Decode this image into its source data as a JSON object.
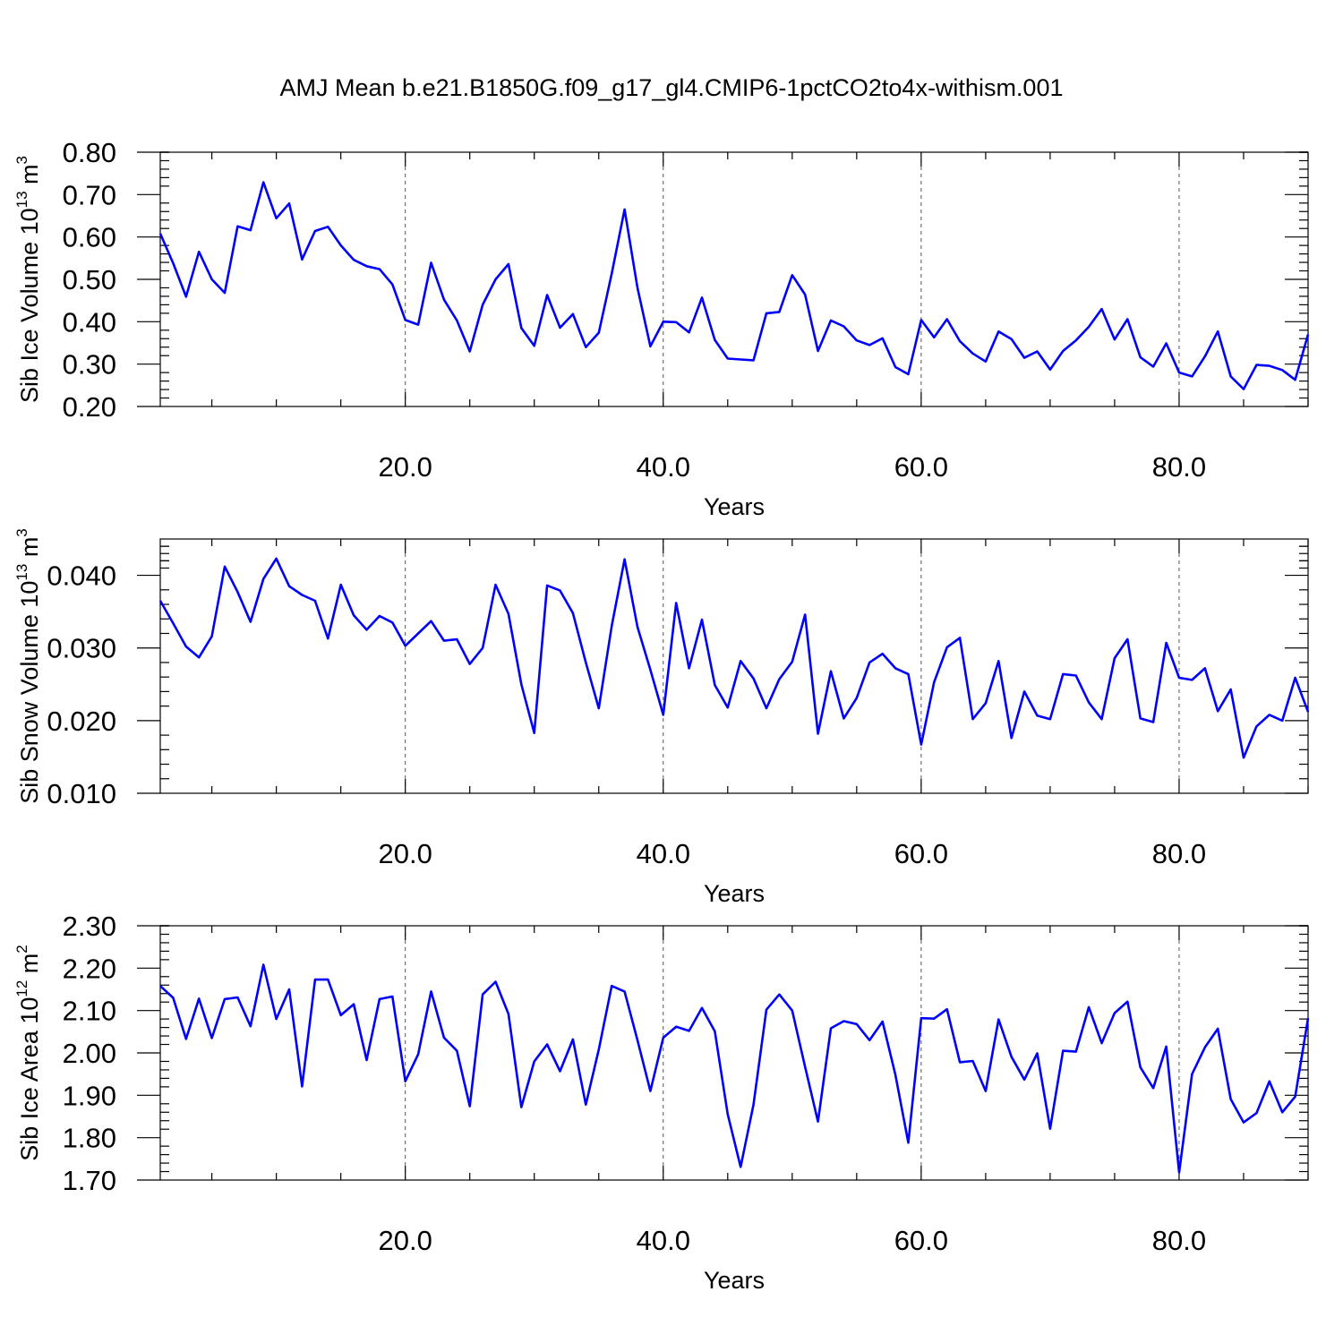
{
  "chart_data": [
    {
      "type": "line",
      "title": "AMJ Mean b.e21.B1850G.f09_g17_gl4.CMIP6-1pctCO2to4x-withism.001",
      "xlabel": "Years",
      "ylabel_text": "Sib Ice Volume 10",
      "ylabel_sup1": "13",
      "ylabel_unit": " m",
      "ylabel_sup2": "3",
      "xlim": [
        1,
        90
      ],
      "ylim": [
        0.2,
        0.8
      ],
      "xticks": [
        20,
        40,
        60,
        80
      ],
      "xtick_labels": [
        "20.0",
        "40.0",
        "60.0",
        "80.0"
      ],
      "yticks": [
        0.2,
        0.3,
        0.4,
        0.5,
        0.6,
        0.7,
        0.8
      ],
      "ytick_labels": [
        "0.20",
        "0.30",
        "0.40",
        "0.50",
        "0.60",
        "0.70",
        "0.80"
      ],
      "grid": "vertical dashed at major x ticks",
      "line_color": "#0000ff",
      "x": [
        1,
        2,
        3,
        4,
        5,
        6,
        7,
        8,
        9,
        10,
        11,
        12,
        13,
        14,
        15,
        16,
        17,
        18,
        19,
        20,
        21,
        22,
        23,
        24,
        25,
        26,
        27,
        28,
        29,
        30,
        31,
        32,
        33,
        34,
        35,
        36,
        37,
        38,
        39,
        40,
        41,
        42,
        43,
        44,
        45,
        46,
        47,
        48,
        49,
        50,
        51,
        52,
        53,
        54,
        55,
        56,
        57,
        58,
        59,
        60,
        61,
        62,
        63,
        64,
        65,
        66,
        67,
        68,
        69,
        70,
        71,
        72,
        73,
        74,
        75,
        76,
        77,
        78,
        79,
        80,
        81,
        82,
        83,
        84,
        85,
        86,
        87,
        88,
        89,
        90
      ],
      "y": [
        0.608,
        0.538,
        0.459,
        0.565,
        0.5,
        0.468,
        0.625,
        0.616,
        0.729,
        0.644,
        0.679,
        0.547,
        0.614,
        0.624,
        0.58,
        0.546,
        0.531,
        0.524,
        0.488,
        0.404,
        0.393,
        0.539,
        0.452,
        0.403,
        0.33,
        0.44,
        0.5,
        0.536,
        0.385,
        0.343,
        0.463,
        0.386,
        0.418,
        0.34,
        0.374,
        0.513,
        0.665,
        0.48,
        0.342,
        0.4,
        0.399,
        0.375,
        0.457,
        0.357,
        0.313,
        0.311,
        0.309,
        0.42,
        0.423,
        0.51,
        0.464,
        0.331,
        0.403,
        0.389,
        0.356,
        0.345,
        0.361,
        0.293,
        0.276,
        0.404,
        0.363,
        0.406,
        0.354,
        0.325,
        0.306,
        0.377,
        0.359,
        0.315,
        0.33,
        0.287,
        0.331,
        0.356,
        0.388,
        0.43,
        0.358,
        0.406,
        0.316,
        0.294,
        0.349,
        0.28,
        0.271,
        0.318,
        0.377,
        0.271,
        0.241,
        0.298,
        0.296,
        0.286,
        0.263,
        0.37
      ]
    },
    {
      "type": "line",
      "xlabel": "Years",
      "ylabel_text": "Sib Snow Volume 10",
      "ylabel_sup1": "13",
      "ylabel_unit": " m",
      "ylabel_sup2": "3",
      "xlim": [
        1,
        90
      ],
      "ylim": [
        0.01,
        0.045
      ],
      "xticks": [
        20,
        40,
        60,
        80
      ],
      "xtick_labels": [
        "20.0",
        "40.0",
        "60.0",
        "80.0"
      ],
      "yticks": [
        0.01,
        0.02,
        0.03,
        0.04
      ],
      "ytick_labels": [
        "0.010",
        "0.020",
        "0.030",
        "0.040"
      ],
      "grid": "vertical dashed at major x ticks",
      "line_color": "#0000ff",
      "x": [
        1,
        2,
        3,
        4,
        5,
        6,
        7,
        8,
        9,
        10,
        11,
        12,
        13,
        14,
        15,
        16,
        17,
        18,
        19,
        20,
        21,
        22,
        23,
        24,
        25,
        26,
        27,
        28,
        29,
        30,
        31,
        32,
        33,
        34,
        35,
        36,
        37,
        38,
        39,
        40,
        41,
        42,
        43,
        44,
        45,
        46,
        47,
        48,
        49,
        50,
        51,
        52,
        53,
        54,
        55,
        56,
        57,
        58,
        59,
        60,
        61,
        62,
        63,
        64,
        65,
        66,
        67,
        68,
        69,
        70,
        71,
        72,
        73,
        74,
        75,
        76,
        77,
        78,
        79,
        80,
        81,
        82,
        83,
        84,
        85,
        86,
        87,
        88,
        89,
        90
      ],
      "y": [
        0.0365,
        0.0334,
        0.0302,
        0.0287,
        0.0316,
        0.0412,
        0.0377,
        0.0336,
        0.0395,
        0.0423,
        0.0385,
        0.0373,
        0.0365,
        0.0313,
        0.0387,
        0.0345,
        0.0325,
        0.0344,
        0.0335,
        0.0303,
        0.032,
        0.0337,
        0.031,
        0.0312,
        0.0278,
        0.03,
        0.0387,
        0.0347,
        0.025,
        0.0183,
        0.0386,
        0.0379,
        0.0348,
        0.028,
        0.0217,
        0.033,
        0.0422,
        0.0329,
        0.027,
        0.0208,
        0.0362,
        0.0272,
        0.0339,
        0.0249,
        0.0218,
        0.0282,
        0.0258,
        0.0217,
        0.0257,
        0.0281,
        0.0346,
        0.0182,
        0.0268,
        0.0203,
        0.0231,
        0.028,
        0.0292,
        0.0272,
        0.0264,
        0.0167,
        0.0253,
        0.0301,
        0.0314,
        0.0202,
        0.0224,
        0.0282,
        0.0176,
        0.024,
        0.0207,
        0.0202,
        0.0264,
        0.0262,
        0.0225,
        0.0202,
        0.0286,
        0.0312,
        0.0203,
        0.0198,
        0.0307,
        0.0259,
        0.0256,
        0.0272,
        0.0213,
        0.0243,
        0.0149,
        0.0192,
        0.0208,
        0.02,
        0.0259,
        0.0212
      ]
    },
    {
      "type": "line",
      "xlabel": "Years",
      "ylabel_text": "Sib Ice Area 10",
      "ylabel_sup1": "12",
      "ylabel_unit": " m",
      "ylabel_sup2": "2",
      "xlim": [
        1,
        90
      ],
      "ylim": [
        1.7,
        2.3
      ],
      "xticks": [
        20,
        40,
        60,
        80
      ],
      "xtick_labels": [
        "20.0",
        "40.0",
        "60.0",
        "80.0"
      ],
      "yticks": [
        1.7,
        1.8,
        1.9,
        2.0,
        2.1,
        2.2,
        2.3
      ],
      "ytick_labels": [
        "1.70",
        "1.80",
        "1.90",
        "2.00",
        "2.10",
        "2.20",
        "2.30"
      ],
      "grid": "vertical dashed at major x ticks",
      "line_color": "#0000ff",
      "x": [
        1,
        2,
        3,
        4,
        5,
        6,
        7,
        8,
        9,
        10,
        11,
        12,
        13,
        14,
        15,
        16,
        17,
        18,
        19,
        20,
        21,
        22,
        23,
        24,
        25,
        26,
        27,
        28,
        29,
        30,
        31,
        32,
        33,
        34,
        35,
        36,
        37,
        38,
        39,
        40,
        41,
        42,
        43,
        44,
        45,
        46,
        47,
        48,
        49,
        50,
        51,
        52,
        53,
        54,
        55,
        56,
        57,
        58,
        59,
        60,
        61,
        62,
        63,
        64,
        65,
        66,
        67,
        68,
        69,
        70,
        71,
        72,
        73,
        74,
        75,
        76,
        77,
        78,
        79,
        80,
        81,
        82,
        83,
        84,
        85,
        86,
        87,
        88,
        89,
        90
      ],
      "y": [
        2.158,
        2.13,
        2.033,
        2.128,
        2.035,
        2.127,
        2.131,
        2.063,
        2.208,
        2.08,
        2.15,
        1.921,
        2.173,
        2.173,
        2.089,
        2.115,
        1.983,
        2.127,
        2.133,
        1.933,
        1.997,
        2.145,
        2.036,
        2.005,
        1.874,
        2.138,
        2.168,
        2.092,
        1.872,
        1.98,
        2.02,
        1.957,
        2.032,
        1.878,
        2.008,
        2.158,
        2.145,
        2.03,
        1.91,
        2.036,
        2.062,
        2.052,
        2.106,
        2.051,
        1.855,
        1.731,
        1.878,
        2.102,
        2.138,
        2.1,
        1.967,
        1.838,
        2.058,
        2.075,
        2.068,
        2.03,
        2.074,
        1.948,
        1.788,
        2.082,
        2.081,
        2.103,
        1.978,
        1.981,
        1.91,
        2.079,
        1.991,
        1.937,
        1.999,
        1.821,
        2.005,
        2.003,
        2.108,
        2.023,
        2.094,
        2.121,
        1.966,
        1.917,
        2.015,
        1.718,
        1.95,
        2.013,
        2.057,
        1.891,
        1.836,
        1.858,
        1.933,
        1.86,
        1.897,
        2.082
      ]
    }
  ]
}
